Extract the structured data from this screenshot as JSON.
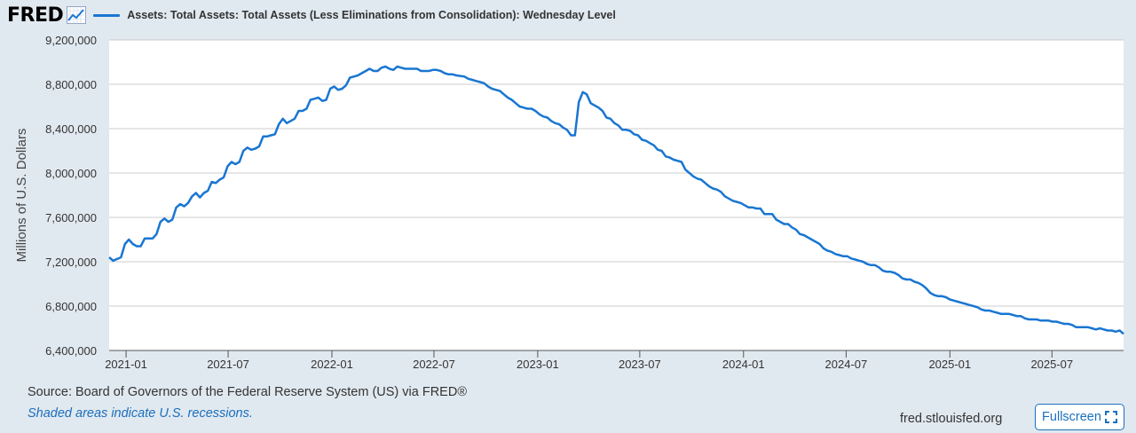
{
  "header": {
    "logo_text": "FRED",
    "legend_label": "Assets: Total Assets: Total Assets (Less Eliminations from Consolidation): Wednesday Level"
  },
  "footer": {
    "source": "Source: Board of Governors of the Federal Reserve System (US) via FRED®",
    "recessions": "Shaded areas indicate U.S. recessions.",
    "site": "fred.stlouisfed.org",
    "fullscreen_label": "Fullscreen"
  },
  "colors": {
    "series": "#1976d2",
    "background": "#e1e9f0",
    "plot": "#ffffff",
    "grid": "#cccccc",
    "link": "#1a6fbd"
  },
  "chart_data": {
    "type": "line",
    "title": "Assets: Total Assets: Total Assets (Less Eliminations from Consolidation): Wednesday Level",
    "xlabel": "",
    "ylabel": "Millions of U.S. Dollars",
    "ylim": [
      6400000,
      9200000
    ],
    "xlim": [
      "2020-12-02",
      "2025-11-05"
    ],
    "y_ticks": [
      6400000,
      6800000,
      7200000,
      7600000,
      8000000,
      8400000,
      8800000,
      9200000
    ],
    "y_tick_labels": [
      "6,400,000",
      "6,800,000",
      "7,200,000",
      "7,600,000",
      "8,000,000",
      "8,400,000",
      "8,800,000",
      "9,200,000"
    ],
    "x_ticks": [
      "2021-01-01",
      "2021-07-01",
      "2022-01-01",
      "2022-07-01",
      "2023-01-01",
      "2023-07-01",
      "2024-01-01",
      "2024-07-01",
      "2025-01-01",
      "2025-07-01"
    ],
    "x_tick_labels": [
      "2021-01",
      "2021-07",
      "2022-01",
      "2022-07",
      "2023-01",
      "2023-07",
      "2024-01",
      "2024-07",
      "2025-01",
      "2025-07"
    ],
    "grid": true,
    "legend": "top-left",
    "series": [
      {
        "name": "Assets: Total Assets: Total Assets (Less Eliminations from Consolidation): Wednesday Level",
        "points": [
          [
            "2020-12-02",
            7240000
          ],
          [
            "2020-12-09",
            7210000
          ],
          [
            "2020-12-23",
            7240000
          ],
          [
            "2020-12-30",
            7360000
          ],
          [
            "2021-01-06",
            7400000
          ],
          [
            "2021-01-13",
            7360000
          ],
          [
            "2021-01-20",
            7340000
          ],
          [
            "2021-01-27",
            7340000
          ],
          [
            "2021-02-03",
            7410000
          ],
          [
            "2021-02-17",
            7410000
          ],
          [
            "2021-02-24",
            7450000
          ],
          [
            "2021-03-03",
            7560000
          ],
          [
            "2021-03-10",
            7590000
          ],
          [
            "2021-03-17",
            7560000
          ],
          [
            "2021-03-24",
            7580000
          ],
          [
            "2021-03-31",
            7690000
          ],
          [
            "2021-04-07",
            7720000
          ],
          [
            "2021-04-14",
            7700000
          ],
          [
            "2021-04-21",
            7730000
          ],
          [
            "2021-04-28",
            7790000
          ],
          [
            "2021-05-05",
            7820000
          ],
          [
            "2021-05-12",
            7780000
          ],
          [
            "2021-05-19",
            7820000
          ],
          [
            "2021-05-26",
            7840000
          ],
          [
            "2021-06-02",
            7920000
          ],
          [
            "2021-06-09",
            7910000
          ],
          [
            "2021-06-16",
            7940000
          ],
          [
            "2021-06-23",
            7960000
          ],
          [
            "2021-06-30",
            8060000
          ],
          [
            "2021-07-07",
            8100000
          ],
          [
            "2021-07-14",
            8080000
          ],
          [
            "2021-07-21",
            8100000
          ],
          [
            "2021-07-28",
            8200000
          ],
          [
            "2021-08-04",
            8230000
          ],
          [
            "2021-08-11",
            8210000
          ],
          [
            "2021-08-18",
            8220000
          ],
          [
            "2021-08-25",
            8240000
          ],
          [
            "2021-09-01",
            8330000
          ],
          [
            "2021-09-08",
            8330000
          ],
          [
            "2021-09-15",
            8340000
          ],
          [
            "2021-09-22",
            8350000
          ],
          [
            "2021-09-29",
            8440000
          ],
          [
            "2021-10-06",
            8490000
          ],
          [
            "2021-10-13",
            8450000
          ],
          [
            "2021-10-20",
            8470000
          ],
          [
            "2021-10-27",
            8490000
          ],
          [
            "2021-11-03",
            8560000
          ],
          [
            "2021-11-10",
            8560000
          ],
          [
            "2021-11-17",
            8580000
          ],
          [
            "2021-11-24",
            8660000
          ],
          [
            "2021-12-01",
            8670000
          ],
          [
            "2021-12-08",
            8680000
          ],
          [
            "2021-12-15",
            8650000
          ],
          [
            "2021-12-22",
            8660000
          ],
          [
            "2021-12-29",
            8760000
          ],
          [
            "2022-01-05",
            8780000
          ],
          [
            "2022-01-12",
            8750000
          ],
          [
            "2022-01-19",
            8760000
          ],
          [
            "2022-01-26",
            8790000
          ],
          [
            "2022-02-02",
            8860000
          ],
          [
            "2022-02-09",
            8870000
          ],
          [
            "2022-02-16",
            8880000
          ],
          [
            "2022-02-23",
            8900000
          ],
          [
            "2022-03-02",
            8920000
          ],
          [
            "2022-03-09",
            8940000
          ],
          [
            "2022-03-16",
            8920000
          ],
          [
            "2022-03-23",
            8920000
          ],
          [
            "2022-03-30",
            8950000
          ],
          [
            "2022-04-06",
            8960000
          ],
          [
            "2022-04-13",
            8940000
          ],
          [
            "2022-04-20",
            8930000
          ],
          [
            "2022-04-27",
            8960000
          ],
          [
            "2022-05-04",
            8950000
          ],
          [
            "2022-05-11",
            8940000
          ],
          [
            "2022-05-18",
            8940000
          ],
          [
            "2022-06-01",
            8940000
          ],
          [
            "2022-06-08",
            8920000
          ],
          [
            "2022-06-15",
            8920000
          ],
          [
            "2022-06-22",
            8920000
          ],
          [
            "2022-06-29",
            8930000
          ],
          [
            "2022-07-06",
            8930000
          ],
          [
            "2022-07-13",
            8920000
          ],
          [
            "2022-07-20",
            8900000
          ],
          [
            "2022-07-27",
            8890000
          ],
          [
            "2022-08-03",
            8890000
          ],
          [
            "2022-08-10",
            8880000
          ],
          [
            "2022-08-24",
            8870000
          ],
          [
            "2022-08-31",
            8850000
          ],
          [
            "2022-09-07",
            8840000
          ],
          [
            "2022-09-14",
            8830000
          ],
          [
            "2022-09-21",
            8820000
          ],
          [
            "2022-09-28",
            8810000
          ],
          [
            "2022-10-05",
            8780000
          ],
          [
            "2022-10-12",
            8760000
          ],
          [
            "2022-10-19",
            8750000
          ],
          [
            "2022-10-26",
            8740000
          ],
          [
            "2022-11-02",
            8710000
          ],
          [
            "2022-11-09",
            8680000
          ],
          [
            "2022-11-16",
            8660000
          ],
          [
            "2022-11-23",
            8630000
          ],
          [
            "2022-11-30",
            8600000
          ],
          [
            "2022-12-07",
            8590000
          ],
          [
            "2022-12-14",
            8580000
          ],
          [
            "2022-12-21",
            8580000
          ],
          [
            "2022-12-28",
            8560000
          ],
          [
            "2023-01-04",
            8530000
          ],
          [
            "2023-01-11",
            8510000
          ],
          [
            "2023-01-18",
            8500000
          ],
          [
            "2023-01-25",
            8470000
          ],
          [
            "2023-02-01",
            8450000
          ],
          [
            "2023-02-08",
            8440000
          ],
          [
            "2023-02-15",
            8410000
          ],
          [
            "2023-02-22",
            8390000
          ],
          [
            "2023-03-01",
            8340000
          ],
          [
            "2023-03-08",
            8340000
          ],
          [
            "2023-03-15",
            8640000
          ],
          [
            "2023-03-22",
            8730000
          ],
          [
            "2023-03-29",
            8710000
          ],
          [
            "2023-04-05",
            8630000
          ],
          [
            "2023-04-12",
            8610000
          ],
          [
            "2023-04-19",
            8590000
          ],
          [
            "2023-04-26",
            8560000
          ],
          [
            "2023-05-03",
            8500000
          ],
          [
            "2023-05-10",
            8490000
          ],
          [
            "2023-05-17",
            8450000
          ],
          [
            "2023-05-24",
            8430000
          ],
          [
            "2023-05-31",
            8390000
          ],
          [
            "2023-06-07",
            8390000
          ],
          [
            "2023-06-14",
            8380000
          ],
          [
            "2023-06-21",
            8350000
          ],
          [
            "2023-06-28",
            8340000
          ],
          [
            "2023-07-05",
            8300000
          ],
          [
            "2023-07-12",
            8290000
          ],
          [
            "2023-07-19",
            8270000
          ],
          [
            "2023-07-26",
            8250000
          ],
          [
            "2023-08-02",
            8210000
          ],
          [
            "2023-08-09",
            8200000
          ],
          [
            "2023-08-16",
            8150000
          ],
          [
            "2023-08-23",
            8140000
          ],
          [
            "2023-08-30",
            8120000
          ],
          [
            "2023-09-06",
            8110000
          ],
          [
            "2023-09-13",
            8100000
          ],
          [
            "2023-09-20",
            8030000
          ],
          [
            "2023-09-27",
            8000000
          ],
          [
            "2023-10-04",
            7970000
          ],
          [
            "2023-10-11",
            7950000
          ],
          [
            "2023-10-18",
            7940000
          ],
          [
            "2023-10-25",
            7910000
          ],
          [
            "2023-11-01",
            7880000
          ],
          [
            "2023-11-08",
            7860000
          ],
          [
            "2023-11-15",
            7850000
          ],
          [
            "2023-11-22",
            7830000
          ],
          [
            "2023-11-29",
            7790000
          ],
          [
            "2023-12-06",
            7770000
          ],
          [
            "2023-12-13",
            7750000
          ],
          [
            "2023-12-20",
            7740000
          ],
          [
            "2023-12-27",
            7730000
          ],
          [
            "2024-01-03",
            7710000
          ],
          [
            "2024-01-10",
            7690000
          ],
          [
            "2024-01-17",
            7690000
          ],
          [
            "2024-01-24",
            7680000
          ],
          [
            "2024-01-31",
            7680000
          ],
          [
            "2024-02-07",
            7630000
          ],
          [
            "2024-02-14",
            7630000
          ],
          [
            "2024-02-21",
            7630000
          ],
          [
            "2024-02-28",
            7580000
          ],
          [
            "2024-03-06",
            7560000
          ],
          [
            "2024-03-13",
            7540000
          ],
          [
            "2024-03-20",
            7540000
          ],
          [
            "2024-03-27",
            7510000
          ],
          [
            "2024-04-03",
            7490000
          ],
          [
            "2024-04-10",
            7450000
          ],
          [
            "2024-04-17",
            7440000
          ],
          [
            "2024-04-24",
            7420000
          ],
          [
            "2024-05-01",
            7400000
          ],
          [
            "2024-05-08",
            7380000
          ],
          [
            "2024-05-15",
            7360000
          ],
          [
            "2024-05-22",
            7320000
          ],
          [
            "2024-05-29",
            7300000
          ],
          [
            "2024-06-05",
            7290000
          ],
          [
            "2024-06-12",
            7270000
          ],
          [
            "2024-06-19",
            7260000
          ],
          [
            "2024-06-26",
            7250000
          ],
          [
            "2024-07-03",
            7250000
          ],
          [
            "2024-07-10",
            7230000
          ],
          [
            "2024-07-17",
            7220000
          ],
          [
            "2024-07-24",
            7210000
          ],
          [
            "2024-07-31",
            7200000
          ],
          [
            "2024-08-07",
            7180000
          ],
          [
            "2024-08-14",
            7170000
          ],
          [
            "2024-08-21",
            7170000
          ],
          [
            "2024-08-28",
            7150000
          ],
          [
            "2024-09-04",
            7120000
          ],
          [
            "2024-09-11",
            7110000
          ],
          [
            "2024-09-18",
            7110000
          ],
          [
            "2024-09-25",
            7100000
          ],
          [
            "2024-10-02",
            7080000
          ],
          [
            "2024-10-09",
            7050000
          ],
          [
            "2024-10-16",
            7040000
          ],
          [
            "2024-10-23",
            7040000
          ],
          [
            "2024-10-30",
            7020000
          ],
          [
            "2024-11-06",
            7010000
          ],
          [
            "2024-11-13",
            6990000
          ],
          [
            "2024-11-20",
            6960000
          ],
          [
            "2024-11-27",
            6920000
          ],
          [
            "2024-12-04",
            6900000
          ],
          [
            "2024-12-11",
            6890000
          ],
          [
            "2024-12-18",
            6890000
          ],
          [
            "2024-12-25",
            6880000
          ],
          [
            "2025-01-01",
            6860000
          ],
          [
            "2025-01-08",
            6850000
          ],
          [
            "2025-01-15",
            6840000
          ],
          [
            "2025-01-22",
            6830000
          ],
          [
            "2025-01-29",
            6820000
          ],
          [
            "2025-02-05",
            6810000
          ],
          [
            "2025-02-12",
            6800000
          ],
          [
            "2025-02-19",
            6790000
          ],
          [
            "2025-02-26",
            6770000
          ],
          [
            "2025-03-05",
            6760000
          ],
          [
            "2025-03-12",
            6760000
          ],
          [
            "2025-03-19",
            6750000
          ],
          [
            "2025-03-26",
            6740000
          ],
          [
            "2025-04-02",
            6730000
          ],
          [
            "2025-04-09",
            6730000
          ],
          [
            "2025-04-16",
            6730000
          ],
          [
            "2025-04-23",
            6720000
          ],
          [
            "2025-04-30",
            6710000
          ],
          [
            "2025-05-07",
            6710000
          ],
          [
            "2025-05-14",
            6690000
          ],
          [
            "2025-05-21",
            6680000
          ],
          [
            "2025-05-28",
            6680000
          ],
          [
            "2025-06-04",
            6680000
          ],
          [
            "2025-06-11",
            6670000
          ],
          [
            "2025-06-18",
            6670000
          ],
          [
            "2025-06-25",
            6670000
          ],
          [
            "2025-07-02",
            6660000
          ],
          [
            "2025-07-09",
            6660000
          ],
          [
            "2025-07-16",
            6650000
          ],
          [
            "2025-07-23",
            6640000
          ],
          [
            "2025-07-30",
            6640000
          ],
          [
            "2025-08-06",
            6630000
          ],
          [
            "2025-08-13",
            6610000
          ],
          [
            "2025-08-20",
            6610000
          ],
          [
            "2025-08-27",
            6610000
          ],
          [
            "2025-09-03",
            6610000
          ],
          [
            "2025-09-10",
            6600000
          ],
          [
            "2025-09-17",
            6590000
          ],
          [
            "2025-09-24",
            6600000
          ],
          [
            "2025-10-01",
            6590000
          ],
          [
            "2025-10-08",
            6580000
          ],
          [
            "2025-10-15",
            6580000
          ],
          [
            "2025-10-22",
            6570000
          ],
          [
            "2025-10-29",
            6580000
          ],
          [
            "2025-11-05",
            6550000
          ]
        ]
      }
    ]
  }
}
